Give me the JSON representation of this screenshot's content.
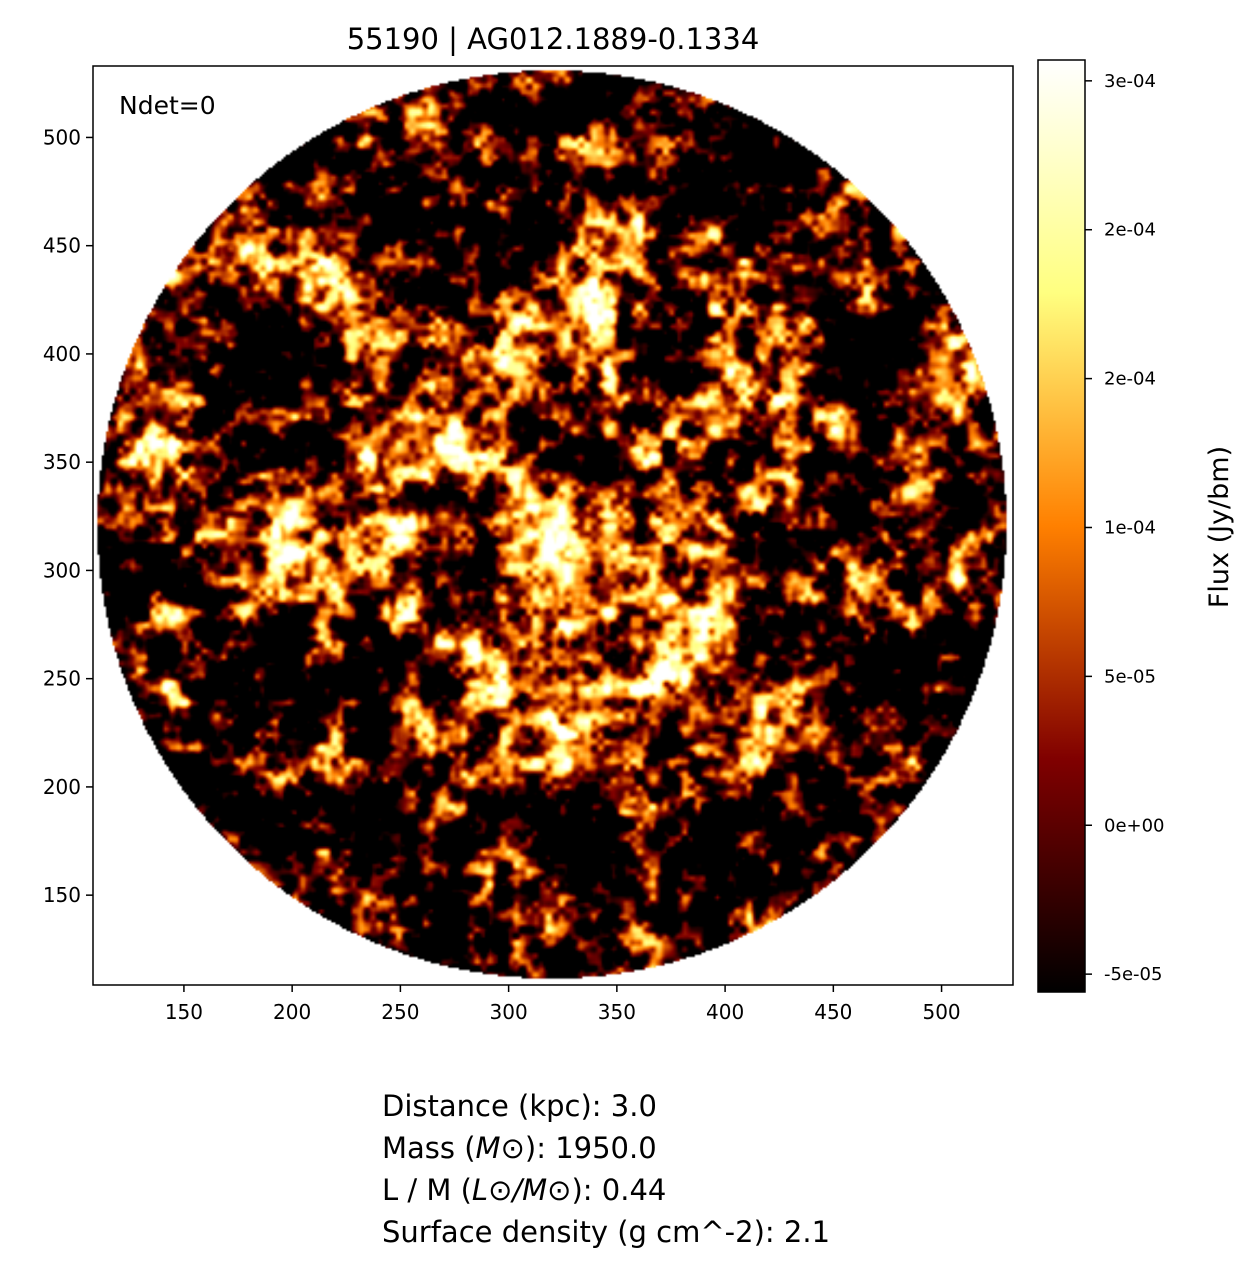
{
  "chart_data": {
    "type": "heatmap",
    "title": "55190 | AG012.1889-0.1334",
    "annotation": "Ndet=0",
    "xlim": [
      108,
      533
    ],
    "ylim": [
      108.5,
      533
    ],
    "x_ticks": [
      150,
      200,
      250,
      300,
      350,
      400,
      450,
      500
    ],
    "y_ticks": [
      150,
      200,
      250,
      300,
      350,
      400,
      450,
      500
    ],
    "image": {
      "shape": "circular field",
      "center": [
        320,
        321
      ],
      "radius": 210,
      "description_values": "noise-like flux map, brightest near center"
    },
    "colormap": "afmhot",
    "colorbar": {
      "label": "Flux (Jy/bm)",
      "vmin": -5.6e-05,
      "vmax": 0.000257,
      "ticks": [
        {
          "value": 0.00025,
          "label": "3e-04"
        },
        {
          "value": 0.0002,
          "label": "2e-04"
        },
        {
          "value": 0.00015,
          "label": "2e-04"
        },
        {
          "value": 0.0001,
          "label": "1e-04"
        },
        {
          "value": 5e-05,
          "label": "5e-05"
        },
        {
          "value": 0.0,
          "label": "0e+00"
        },
        {
          "value": -5e-05,
          "label": "-5e-05"
        }
      ]
    },
    "grid": false
  },
  "info": [
    {
      "pre": "Distance (kpc): ",
      "math": "",
      "post": "",
      "value": "3.0"
    },
    {
      "pre": "Mass (",
      "math": "M⊙",
      "post": "): ",
      "value": "1950.0"
    },
    {
      "pre": "L / M (",
      "math": "L⊙/M⊙",
      "post": "): ",
      "value": "0.44"
    },
    {
      "pre": "Surface density (g cm^-2): ",
      "math": "",
      "post": "",
      "value": "2.1"
    }
  ]
}
